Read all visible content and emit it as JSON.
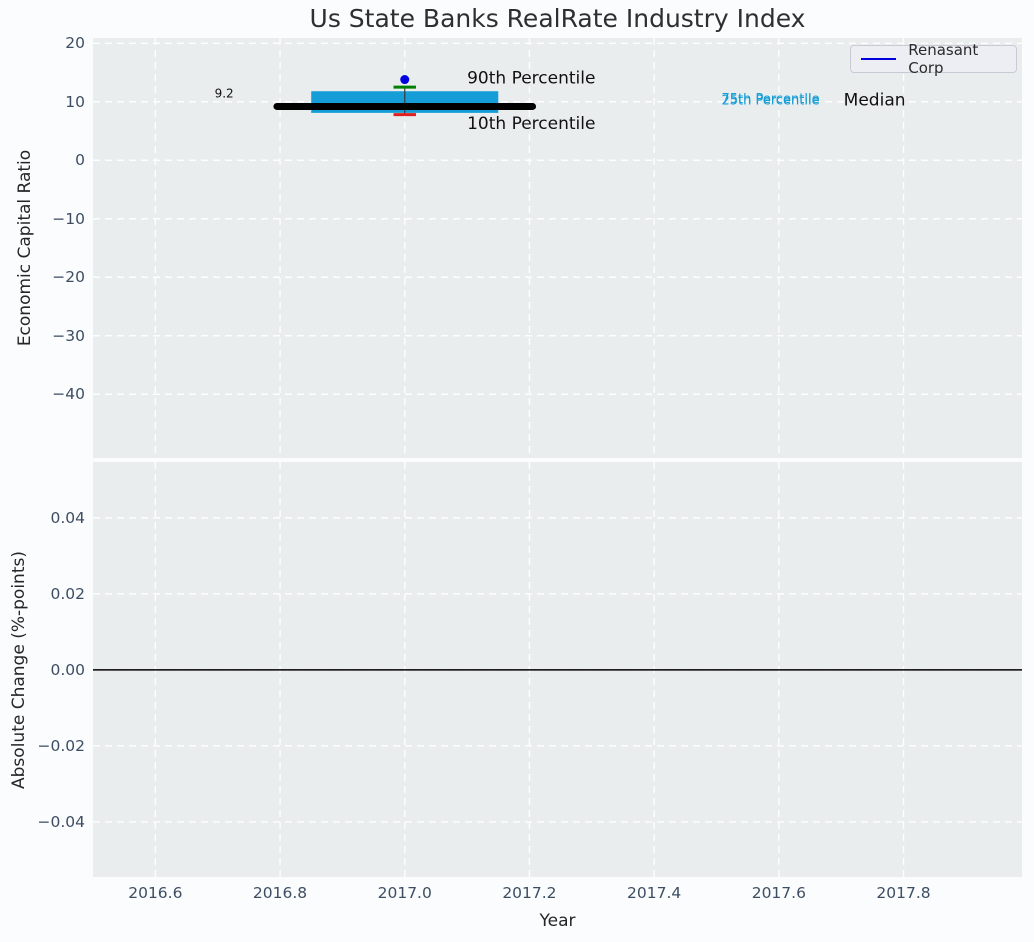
{
  "title": "Us State Banks RealRate Industry Index",
  "legend": {
    "label": "Renasant Corp",
    "line_color": "#0000dd",
    "position": "upper right"
  },
  "chart_data": [
    {
      "type": "boxplot",
      "title": "Us State Banks RealRate Industry Index",
      "xlabel": "Year",
      "ylabel": "Economic Capital Ratio",
      "xlim": [
        2016.5,
        2017.99
      ],
      "ylim": [
        -50.9,
        20.9
      ],
      "grid": true,
      "x_ticks": [
        2016.6,
        2016.8,
        2017.0,
        2017.2,
        2017.4,
        2017.6,
        2017.8
      ],
      "x_tick_labels": [
        "2016.6",
        "2016.8",
        "2017.0",
        "2017.2",
        "2017.4",
        "2017.6",
        "2017.8"
      ],
      "y_ticks": [
        20,
        10,
        0,
        -10,
        -20,
        -30,
        -40
      ],
      "y_tick_labels": [
        "20",
        "10",
        "0",
        "−10",
        "−20",
        "−30",
        "−40"
      ],
      "box": {
        "x": 2017.0,
        "p10": 7.8,
        "p25": 8.1,
        "median": 9.2,
        "p75": 11.8,
        "p90": 12.5,
        "median_label": "9.2",
        "box_x_span": [
          2016.85,
          2017.15
        ],
        "median_x_span": [
          2016.795,
          2017.205
        ],
        "cap_half_width": 0.018,
        "box_color": "#149dd6",
        "median_color": "#000000",
        "p90_cap_color": "#008000",
        "p10_cap_color": "#e02020",
        "whisker_color": "#3a3a3a"
      },
      "series": [
        {
          "name": "Renasant Corp",
          "type": "scatter",
          "color": "#0000e0",
          "points": [
            {
              "x": 2017.0,
              "y": 13.8
            }
          ]
        }
      ],
      "annotations": [
        {
          "text": "90th Percentile",
          "x": 2017.1,
          "y": 14.0,
          "size": 17,
          "color": "#111111"
        },
        {
          "text": "10th Percentile",
          "x": 2017.1,
          "y": 6.2,
          "size": 17,
          "color": "#111111"
        },
        {
          "text": "9.2",
          "x": 2016.695,
          "y": 11.45,
          "size": 12,
          "color": "#111111"
        },
        {
          "text": "75th Percentile",
          "x": 2017.508,
          "y": 10.4,
          "size": 13,
          "color": "#149dd6"
        },
        {
          "text": "25th Percentile",
          "x": 2017.508,
          "y": 10.15,
          "size": 13,
          "color": "#149dd6"
        },
        {
          "text": "Median",
          "x": 2017.704,
          "y": 10.25,
          "size": 17,
          "color": "#111111"
        }
      ]
    },
    {
      "type": "line",
      "xlabel": "Year",
      "ylabel": "Absolute Change (%-points)",
      "xlim": [
        2016.5,
        2017.99
      ],
      "ylim": [
        -0.0545,
        0.0547
      ],
      "grid": true,
      "x_ticks": [
        2016.6,
        2016.8,
        2017.0,
        2017.2,
        2017.4,
        2017.6,
        2017.8
      ],
      "y_ticks": [
        0.04,
        0.02,
        0.0,
        -0.02,
        -0.04
      ],
      "y_tick_labels": [
        "0.04",
        "0.02",
        "0.00",
        "−0.02",
        "−0.04"
      ],
      "zero_line": {
        "y": 0.0,
        "color": "#000000"
      },
      "series": []
    }
  ],
  "style": {
    "plot_bg": "#e9edee",
    "grid_color": "#ffffff",
    "tick_color": "#3d4e63",
    "fig_bg": "#fbfcfd"
  }
}
